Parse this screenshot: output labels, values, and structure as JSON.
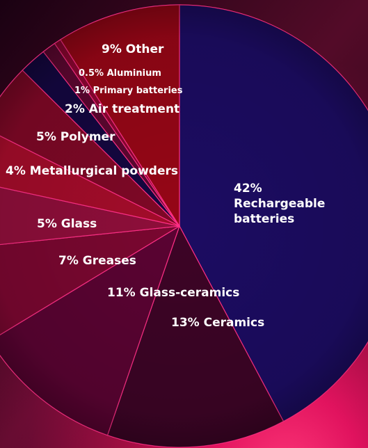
{
  "chart_data": {
    "type": "pie",
    "slices": [
      {
        "label": "Rechargeable batteries",
        "value": 42,
        "display": [
          "42%",
          "Rechargeable",
          "batteries"
        ],
        "color": "#1c0c62"
      },
      {
        "label": "Ceramics",
        "value": 13,
        "display": [
          "13% Ceramics"
        ],
        "color": "#3d0426"
      },
      {
        "label": "Glass-ceramics",
        "value": 11,
        "display": [
          "11% Glass-ceramics"
        ],
        "color": "#5a0332"
      },
      {
        "label": "Greases",
        "value": 7,
        "display": [
          "7% Greases"
        ],
        "color": "#7a0730"
      },
      {
        "label": "Glass",
        "value": 5,
        "display": [
          "5% Glass"
        ],
        "color": "#8e0e3a"
      },
      {
        "label": "Metallurgical powders",
        "value": 4,
        "display": [
          "4% Metallurgical powders"
        ],
        "color": "#a30c2a"
      },
      {
        "label": "Polymer",
        "value": 5,
        "display": [
          "5% Polymer"
        ],
        "color": "#7e0826"
      },
      {
        "label": "Air treatment",
        "value": 2,
        "display": [
          "2% Air treatment"
        ],
        "color": "#140740"
      },
      {
        "label": "Primary batteries",
        "value": 1,
        "display": [
          "1% Primary batteries"
        ],
        "color": "#5c0730"
      },
      {
        "label": "Aluminium",
        "value": 0.5,
        "display": [
          "0.5% Aluminium"
        ],
        "color": "#8a0630"
      },
      {
        "label": "Other",
        "value": 9,
        "display": [
          "9% Other"
        ],
        "color": "#960616"
      }
    ],
    "colors": {
      "slice_border": "#ff2f86",
      "background_dark": "#2a0218",
      "background_glow": "#ff1e6e"
    }
  }
}
